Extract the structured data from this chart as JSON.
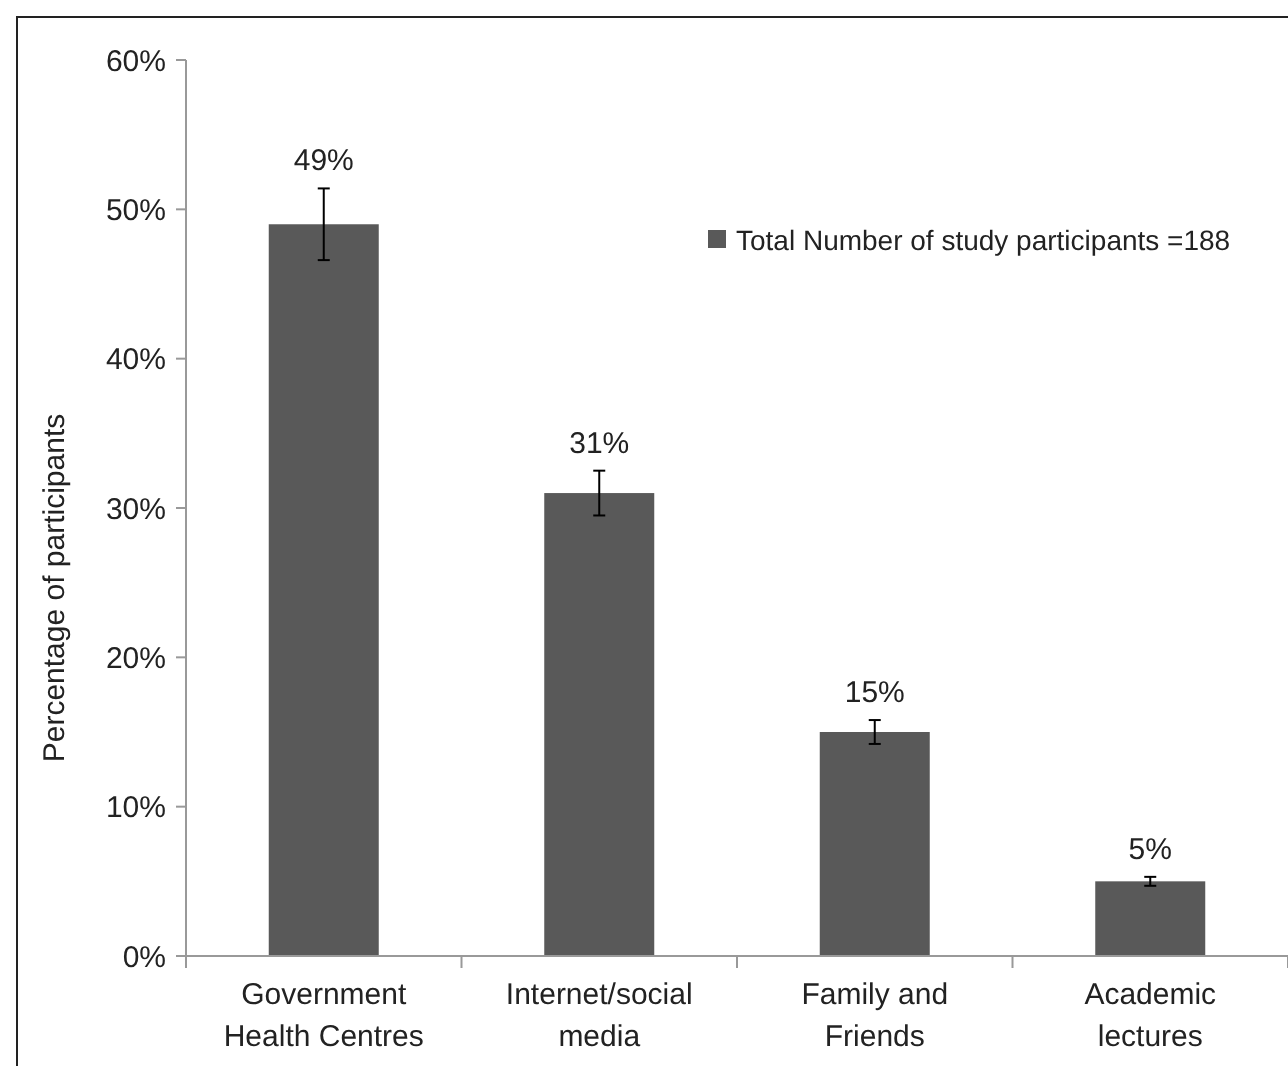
{
  "chart_data": {
    "type": "bar",
    "ylabel": "Percentage of participants",
    "categories": [
      "Government Health Centres",
      "Internet/social media",
      "Family and Friends",
      "Academic lectures"
    ],
    "series": [
      {
        "name": "Total Number of study participants =188",
        "color": "#595959",
        "values": [
          49,
          31,
          15,
          5
        ],
        "errors": [
          2.4,
          1.5,
          0.8,
          0.3
        ],
        "value_labels": [
          "49%",
          "31%",
          "15%",
          "5%"
        ]
      }
    ],
    "ylim": [
      0,
      60
    ],
    "yticks": [
      {
        "value": 0,
        "label": "0%"
      },
      {
        "value": 10,
        "label": "10%"
      },
      {
        "value": 20,
        "label": "20%"
      },
      {
        "value": 30,
        "label": "30%"
      },
      {
        "value": 40,
        "label": "40%"
      },
      {
        "value": 50,
        "label": "50%"
      },
      {
        "value": 60,
        "label": "60%"
      }
    ],
    "grid": false,
    "legend": "top right"
  }
}
